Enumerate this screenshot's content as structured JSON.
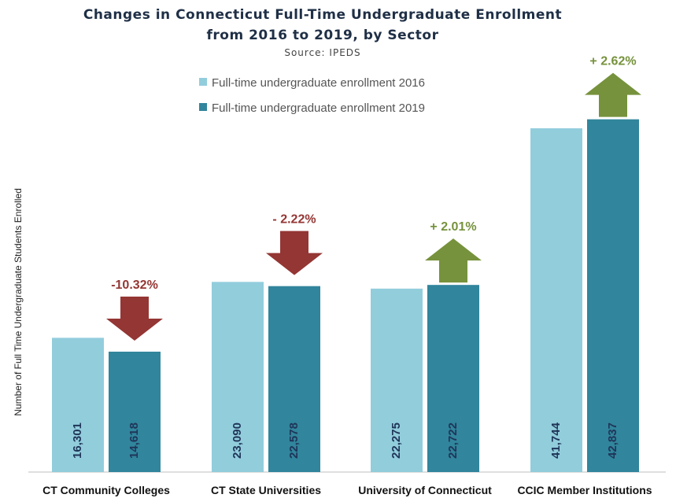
{
  "chart_data": {
    "type": "bar",
    "title": "Changes in Connecticut Full-Time Undergraduate Enrollment",
    "title_line2": "from 2016 to 2019, by Sector",
    "subtitle": "Source: IPEDS",
    "ylabel": "Number of Full Time Undergraduate Students Enrolled",
    "categories": [
      "CT Community Colleges",
      "CT State Universities",
      "University of Connecticut",
      "CCIC Member Institutions"
    ],
    "series": [
      {
        "name": "Full-time undergraduate enrollment 2016",
        "color": "#92cddc",
        "values": [
          16301,
          23090,
          22275,
          41744
        ],
        "labels": [
          "16,301",
          "23,090",
          "22,275",
          "41,744"
        ]
      },
      {
        "name": "Full-time undergraduate enrollment 2019",
        "color": "#31859c",
        "values": [
          14618,
          22578,
          22722,
          42837
        ],
        "labels": [
          "14,618",
          "22,578",
          "22,722",
          "42,837"
        ]
      }
    ],
    "changes": [
      {
        "label": "-10.32%",
        "direction": "down",
        "color": "#943634"
      },
      {
        "label": "- 2.22%",
        "direction": "down",
        "color": "#943634"
      },
      {
        "label": "+ 2.01%",
        "direction": "up",
        "color": "#76923c"
      },
      {
        "label": "+ 2.62%",
        "direction": "up",
        "color": "#76923c"
      }
    ],
    "ylim": [
      0,
      45000
    ],
    "grid": false,
    "legend_position": "top-center"
  }
}
